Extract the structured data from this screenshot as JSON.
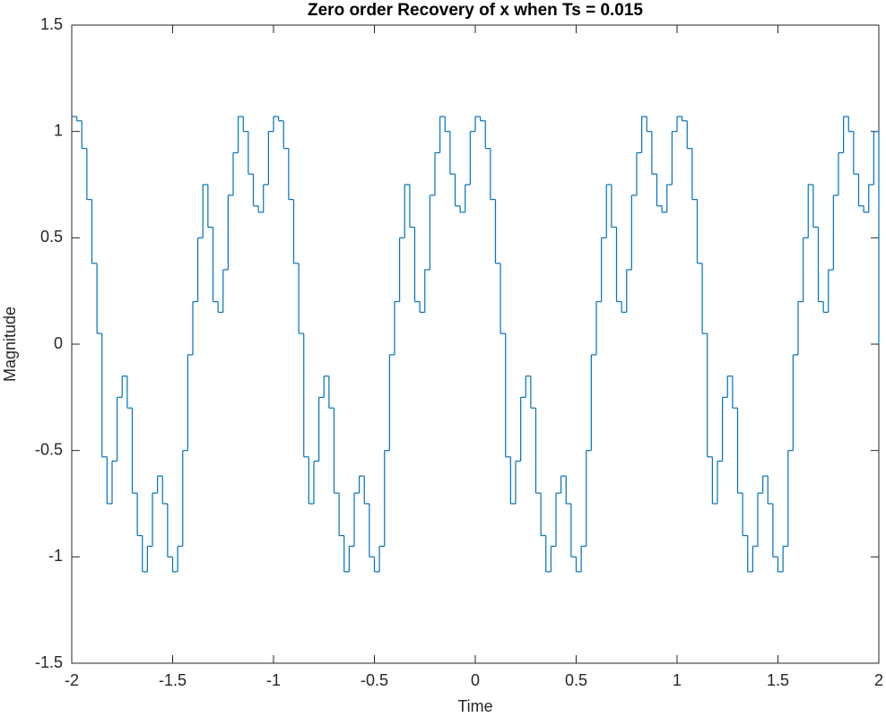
{
  "chart_data": {
    "type": "step",
    "title": "Zero order Recovery of x when Ts = 0.015",
    "xlabel": "Time",
    "ylabel": "Magnitude",
    "color": "#0072bd",
    "xlim": [
      -2,
      2
    ],
    "xticks": [
      -2,
      -1.5,
      -1,
      -0.5,
      0,
      0.5,
      1,
      1.5,
      2
    ],
    "ylim": [
      -1.5,
      1.5
    ],
    "yticks": [
      -1.5,
      -1,
      -0.5,
      0,
      0.5,
      1,
      1.5
    ],
    "x": [
      -2,
      -1.975,
      -1.95,
      -1.925,
      -1.9,
      -1.875,
      -1.85,
      -1.825,
      -1.8,
      -1.775,
      -1.75,
      -1.725,
      -1.7,
      -1.675,
      -1.65,
      -1.625,
      -1.6,
      -1.575,
      -1.55,
      -1.525,
      -1.5,
      -1.475,
      -1.45,
      -1.425,
      -1.4,
      -1.375,
      -1.35,
      -1.325,
      -1.3,
      -1.275,
      -1.25,
      -1.225,
      -1.2,
      -1.175,
      -1.15,
      -1.125,
      -1.1,
      -1.075,
      -1.05,
      -1.025,
      -1,
      -0.975,
      -0.95,
      -0.925,
      -0.9,
      -0.875,
      -0.85,
      -0.825,
      -0.8,
      -0.775,
      -0.75,
      -0.725,
      -0.7,
      -0.675,
      -0.65,
      -0.625,
      -0.6,
      -0.575,
      -0.55,
      -0.525,
      -0.5,
      -0.475,
      -0.45,
      -0.425,
      -0.4,
      -0.375,
      -0.35,
      -0.325,
      -0.3,
      -0.275,
      -0.25,
      -0.225,
      -0.2,
      -0.175,
      -0.15,
      -0.125,
      -0.1,
      -0.075,
      -0.05,
      -0.025,
      0,
      0.025,
      0.05,
      0.075,
      0.1,
      0.125,
      0.15,
      0.175,
      0.2,
      0.225,
      0.25,
      0.275,
      0.3,
      0.325,
      0.35,
      0.375,
      0.4,
      0.425,
      0.45,
      0.475,
      0.5,
      0.525,
      0.55,
      0.575,
      0.6,
      0.625,
      0.65,
      0.675,
      0.7,
      0.725,
      0.75,
      0.775,
      0.8,
      0.825,
      0.85,
      0.875,
      0.9,
      0.925,
      0.95,
      0.975,
      1,
      1.025,
      1.05,
      1.075,
      1.1,
      1.125,
      1.15,
      1.175,
      1.2,
      1.225,
      1.25,
      1.275,
      1.3,
      1.325,
      1.35,
      1.375,
      1.4,
      1.425,
      1.45,
      1.475,
      1.5,
      1.525,
      1.55,
      1.575,
      1.6,
      1.625,
      1.65,
      1.675,
      1.7,
      1.725,
      1.75,
      1.775,
      1.8,
      1.825,
      1.85,
      1.875,
      1.9,
      1.925,
      1.95,
      1.975,
      2
    ],
    "values": [
      1.07,
      1.05,
      0.92,
      0.68,
      0.38,
      0.05,
      -0.53,
      -0.75,
      -0.55,
      -0.25,
      -0.15,
      -0.3,
      -0.7,
      -0.9,
      -1.07,
      -0.95,
      -0.7,
      -0.62,
      -0.75,
      -1.0,
      -1.07,
      -0.95,
      -0.5,
      -0.05,
      0.2,
      0.5,
      0.75,
      0.55,
      0.2,
      0.15,
      0.35,
      0.7,
      0.9,
      1.07,
      1.0,
      0.8,
      0.65,
      0.62,
      0.75,
      1.0,
      1.07,
      1.05,
      0.92,
      0.68,
      0.38,
      0.05,
      -0.53,
      -0.75,
      -0.55,
      -0.25,
      -0.15,
      -0.3,
      -0.7,
      -0.9,
      -1.07,
      -0.95,
      -0.7,
      -0.62,
      -0.75,
      -1.0,
      -1.07,
      -0.95,
      -0.5,
      -0.05,
      0.2,
      0.5,
      0.75,
      0.55,
      0.2,
      0.15,
      0.35,
      0.7,
      0.9,
      1.07,
      1.0,
      0.8,
      0.65,
      0.62,
      0.75,
      1.0,
      1.07,
      1.05,
      0.92,
      0.68,
      0.38,
      0.05,
      -0.53,
      -0.75,
      -0.55,
      -0.25,
      -0.15,
      -0.3,
      -0.7,
      -0.9,
      -1.07,
      -0.95,
      -0.7,
      -0.62,
      -0.75,
      -1.0,
      -1.07,
      -0.95,
      -0.5,
      -0.05,
      0.2,
      0.5,
      0.75,
      0.55,
      0.2,
      0.15,
      0.35,
      0.7,
      0.9,
      1.07,
      1.0,
      0.8,
      0.65,
      0.62,
      0.75,
      1.0,
      1.07,
      1.05,
      0.92,
      0.68,
      0.38,
      0.05,
      -0.53,
      -0.75,
      -0.55,
      -0.25,
      -0.15,
      -0.3,
      -0.7,
      -0.9,
      -1.07,
      -0.95,
      -0.7,
      -0.62,
      -0.75,
      -1.0,
      -1.07,
      -0.95,
      -0.5,
      -0.05,
      0.2,
      0.5,
      0.75,
      0.55,
      0.2,
      0.15,
      0.35,
      0.7,
      0.9,
      1.07,
      1.0,
      0.8,
      0.65,
      0.62,
      0.75,
      1.0,
      0
    ]
  }
}
